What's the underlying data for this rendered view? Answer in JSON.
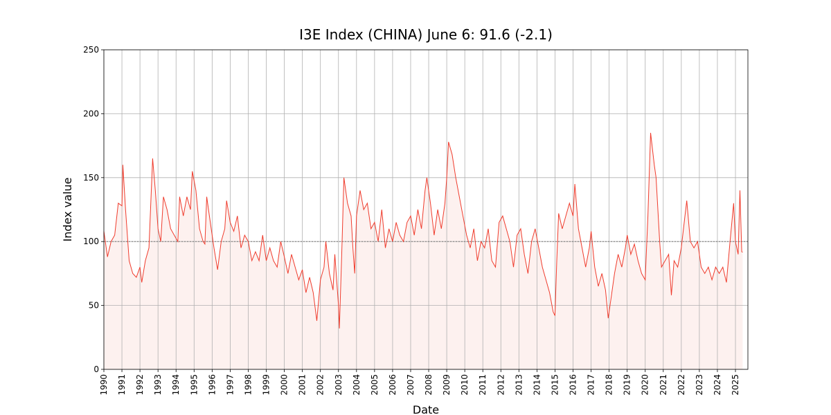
{
  "chart_data": {
    "type": "line",
    "title": "I3E Index (CHINA) June 6: 91.6 (-2.1)",
    "xlabel": "Date",
    "ylabel": "Index value",
    "color": "#ef3b2c",
    "fill_color": "#fdf1ef",
    "reference_line": 100,
    "x": [
      1990.0,
      1990.2,
      1990.4,
      1990.6,
      1990.8,
      1991.0,
      1991.05,
      1991.2,
      1991.4,
      1991.6,
      1991.8,
      1992.0,
      1992.1,
      1992.3,
      1992.5,
      1992.7,
      1992.85,
      1993.0,
      1993.15,
      1993.3,
      1993.5,
      1993.7,
      1993.9,
      1994.1,
      1994.2,
      1994.4,
      1994.6,
      1994.8,
      1994.9,
      1995.1,
      1995.3,
      1995.5,
      1995.6,
      1995.7,
      1995.9,
      1996.1,
      1996.3,
      1996.5,
      1996.7,
      1996.8,
      1997.0,
      1997.2,
      1997.4,
      1997.6,
      1997.8,
      1998.0,
      1998.2,
      1998.4,
      1998.6,
      1998.8,
      1999.0,
      1999.2,
      1999.4,
      1999.6,
      1999.8,
      2000.0,
      2000.2,
      2000.4,
      2000.6,
      2000.8,
      2001.0,
      2001.2,
      2001.4,
      2001.6,
      2001.8,
      2002.0,
      2002.2,
      2002.3,
      2002.5,
      2002.7,
      2002.8,
      2003.0,
      2003.05,
      2003.2,
      2003.3,
      2003.5,
      2003.7,
      2003.8,
      2003.9,
      2004.0,
      2004.2,
      2004.4,
      2004.6,
      2004.8,
      2005.0,
      2005.2,
      2005.4,
      2005.6,
      2005.8,
      2006.0,
      2006.2,
      2006.4,
      2006.6,
      2006.8,
      2007.0,
      2007.2,
      2007.4,
      2007.6,
      2007.8,
      2007.9,
      2008.1,
      2008.3,
      2008.5,
      2008.7,
      2008.9,
      2009.0,
      2009.1,
      2009.3,
      2009.5,
      2009.7,
      2009.9,
      2010.1,
      2010.3,
      2010.5,
      2010.7,
      2010.9,
      2011.1,
      2011.3,
      2011.5,
      2011.7,
      2011.9,
      2012.1,
      2012.3,
      2012.5,
      2012.7,
      2012.9,
      2013.1,
      2013.3,
      2013.5,
      2013.7,
      2013.9,
      2014.1,
      2014.3,
      2014.5,
      2014.7,
      2014.9,
      2015.0,
      2015.1,
      2015.2,
      2015.4,
      2015.6,
      2015.8,
      2016.0,
      2016.1,
      2016.3,
      2016.5,
      2016.7,
      2016.9,
      2017.0,
      2017.2,
      2017.4,
      2017.6,
      2017.8,
      2017.95,
      2018.1,
      2018.3,
      2018.5,
      2018.7,
      2018.9,
      2019.0,
      2019.2,
      2019.4,
      2019.6,
      2019.8,
      2020.0,
      2020.15,
      2020.3,
      2020.5,
      2020.6,
      2020.8,
      2020.9,
      2021.1,
      2021.3,
      2021.45,
      2021.6,
      2021.8,
      2022.0,
      2022.2,
      2022.3,
      2022.5,
      2022.7,
      2022.9,
      2023.1,
      2023.3,
      2023.5,
      2023.7,
      2023.9,
      2024.1,
      2024.3,
      2024.5,
      2024.7,
      2024.9,
      2025.0,
      2025.15,
      2025.25,
      2025.35,
      2025.4
    ],
    "values": [
      108,
      88,
      100,
      105,
      130,
      128,
      160,
      125,
      85,
      75,
      72,
      80,
      68,
      85,
      95,
      165,
      140,
      110,
      100,
      135,
      125,
      110,
      105,
      100,
      135,
      120,
      135,
      125,
      155,
      140,
      110,
      100,
      98,
      135,
      115,
      95,
      78,
      100,
      110,
      132,
      115,
      108,
      120,
      95,
      105,
      100,
      85,
      92,
      85,
      105,
      85,
      95,
      85,
      80,
      100,
      88,
      75,
      90,
      80,
      70,
      78,
      60,
      72,
      60,
      38,
      70,
      80,
      100,
      75,
      62,
      90,
      50,
      32,
      100,
      150,
      130,
      120,
      95,
      75,
      120,
      140,
      125,
      130,
      110,
      115,
      100,
      125,
      95,
      110,
      100,
      115,
      105,
      100,
      115,
      120,
      105,
      125,
      110,
      140,
      150,
      130,
      105,
      125,
      110,
      130,
      150,
      178,
      168,
      150,
      135,
      120,
      105,
      95,
      110,
      85,
      100,
      95,
      110,
      85,
      80,
      115,
      120,
      110,
      100,
      80,
      105,
      110,
      90,
      75,
      100,
      110,
      95,
      80,
      70,
      60,
      45,
      42,
      85,
      122,
      110,
      120,
      130,
      120,
      145,
      110,
      95,
      80,
      95,
      108,
      80,
      65,
      75,
      62,
      40,
      55,
      75,
      90,
      80,
      95,
      105,
      90,
      98,
      85,
      75,
      70,
      120,
      185,
      160,
      150,
      100,
      80,
      85,
      90,
      58,
      85,
      80,
      95,
      120,
      132,
      100,
      95,
      100,
      80,
      75,
      80,
      70,
      80,
      75,
      80,
      68,
      100,
      130,
      100,
      90,
      140,
      92,
      91.6
    ],
    "xlim": [
      1990,
      2025.69
    ],
    "xticks": [
      1990,
      1991,
      1992,
      1993,
      1994,
      1995,
      1996,
      1997,
      1998,
      1999,
      2000,
      2001,
      2002,
      2003,
      2004,
      2005,
      2006,
      2007,
      2008,
      2009,
      2010,
      2011,
      2012,
      2013,
      2014,
      2015,
      2016,
      2017,
      2018,
      2019,
      2020,
      2021,
      2022,
      2023,
      2024,
      2025
    ],
    "ylim": [
      0,
      250
    ],
    "yticks": [
      0,
      50,
      100,
      150,
      200,
      250
    ],
    "grid": true
  }
}
